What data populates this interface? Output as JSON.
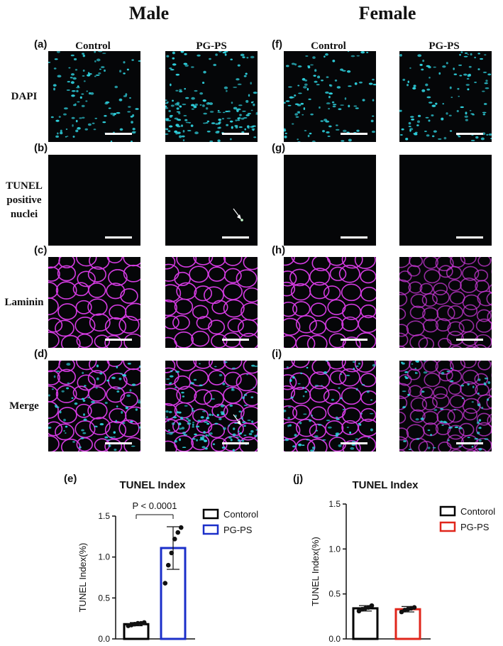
{
  "figure": {
    "male_title": "Male",
    "female_title": "Female",
    "col_control": "Control",
    "col_pgps": "PG-PS",
    "rows": [
      {
        "letter_male": "(a)",
        "letter_female": "(f)",
        "label": "DAPI",
        "stain": "dapi"
      },
      {
        "letter_male": "(b)",
        "letter_female": "(g)",
        "label": "TUNEL positive nuclei",
        "label_lines": [
          "TUNEL",
          "positive",
          "nuclei"
        ],
        "stain": "tunel"
      },
      {
        "letter_male": "(c)",
        "letter_female": "(h)",
        "label": "Laminin",
        "stain": "laminin"
      },
      {
        "letter_male": "(d)",
        "letter_female": "(i)",
        "label": "Merge",
        "stain": "merge"
      }
    ],
    "stain_colors": {
      "dapi": "#2fd3e0",
      "laminin": "#d33be0",
      "tunel_background": "#000000",
      "tunel_positive": "#c8ffcf"
    }
  },
  "chart_data": [
    {
      "panel": "(e)",
      "type": "bar",
      "title": "TUNEL Index",
      "ylabel": "TUNEL Index(%)",
      "xlabel": "",
      "ylim": [
        0,
        1.5
      ],
      "yticks": [
        "0.0",
        "0.5",
        "1.0",
        "1.5"
      ],
      "categories": [
        "Contorol",
        "PG-PS"
      ],
      "series": [
        {
          "name": "Contorol",
          "color": "#000000",
          "mean": 0.18,
          "sd": 0.02,
          "points": [
            0.16,
            0.17,
            0.18,
            0.19,
            0.19,
            0.2
          ]
        },
        {
          "name": "PG-PS",
          "color": "#1b2fc9",
          "mean": 1.11,
          "sd": 0.26,
          "points": [
            0.68,
            0.9,
            1.05,
            1.22,
            1.3,
            1.36
          ]
        }
      ],
      "annotation": "P < 0.0001",
      "legend_position": "top-right"
    },
    {
      "panel": "(j)",
      "type": "bar",
      "title": "TUNEL Index",
      "ylabel": "TUNEL Index(%)",
      "xlabel": "",
      "ylim": [
        0,
        1.5
      ],
      "yticks": [
        "0.0",
        "0.5",
        "1.0",
        "1.5"
      ],
      "categories": [
        "Contorol",
        "PG-PS"
      ],
      "series": [
        {
          "name": "Contorol",
          "color": "#000000",
          "mean": 0.34,
          "sd": 0.03,
          "points": [
            0.31,
            0.33,
            0.34,
            0.35,
            0.37
          ]
        },
        {
          "name": "PG-PS",
          "color": "#e0261b",
          "mean": 0.33,
          "sd": 0.03,
          "points": [
            0.3,
            0.32,
            0.33,
            0.34,
            0.35
          ]
        }
      ],
      "annotation": "",
      "legend_position": "top-right"
    }
  ]
}
